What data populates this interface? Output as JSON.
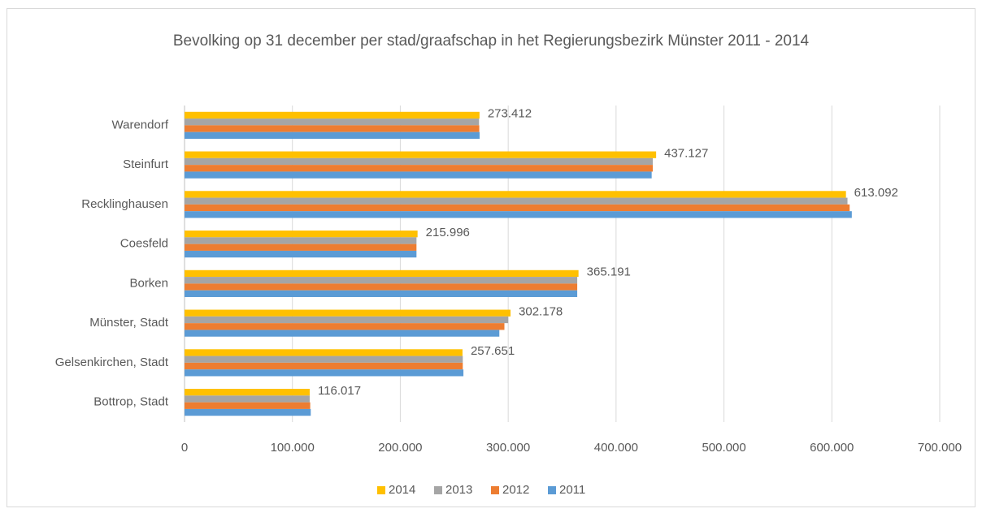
{
  "chart_data": {
    "type": "bar",
    "orientation": "horizontal",
    "title": "Bevolking op 31 december per stad/graafschap in het Regierungsbezirk Münster 2011 - 2014",
    "categories": [
      "Warendorf",
      "Steinfurt",
      "Recklinghausen",
      "Coesfeld",
      "Borken",
      "Münster, Stadt",
      "Gelsenkirchen, Stadt",
      "Bottrop, Stadt"
    ],
    "series": [
      {
        "name": "2014",
        "color": "#ffc000",
        "values": [
          273412,
          437127,
          613092,
          215996,
          365191,
          302178,
          257651,
          116017
        ],
        "value_labels": [
          "273.412",
          "437.127",
          "613.092",
          "215.996",
          "365.191",
          "302.178",
          "257.651",
          "116.017"
        ]
      },
      {
        "name": "2013",
        "color": "#a5a5a5",
        "values": [
          273000,
          434000,
          614500,
          215000,
          364000,
          300000,
          257900,
          116000
        ]
      },
      {
        "name": "2012",
        "color": "#ed7d31",
        "values": [
          273200,
          434000,
          616500,
          215000,
          364000,
          296500,
          257900,
          116500
        ]
      },
      {
        "name": "2011",
        "color": "#5b9bd5",
        "values": [
          273500,
          433000,
          618500,
          215000,
          364000,
          291800,
          258500,
          117000
        ]
      }
    ],
    "xlim": [
      0,
      700000
    ],
    "xticks": [
      0,
      {
        "value": 100000,
        "label": "100.000"
      },
      {
        "value": 200000,
        "label": "200.000"
      },
      {
        "value": 300000,
        "label": "300.000"
      },
      {
        "value": 400000,
        "label": "400.000"
      },
      {
        "value": 500000,
        "label": "500.000"
      },
      {
        "value": 600000,
        "label": "600.000"
      },
      {
        "value": 700000,
        "label": "700.000"
      }
    ],
    "grid": true,
    "legend": "bottom"
  }
}
